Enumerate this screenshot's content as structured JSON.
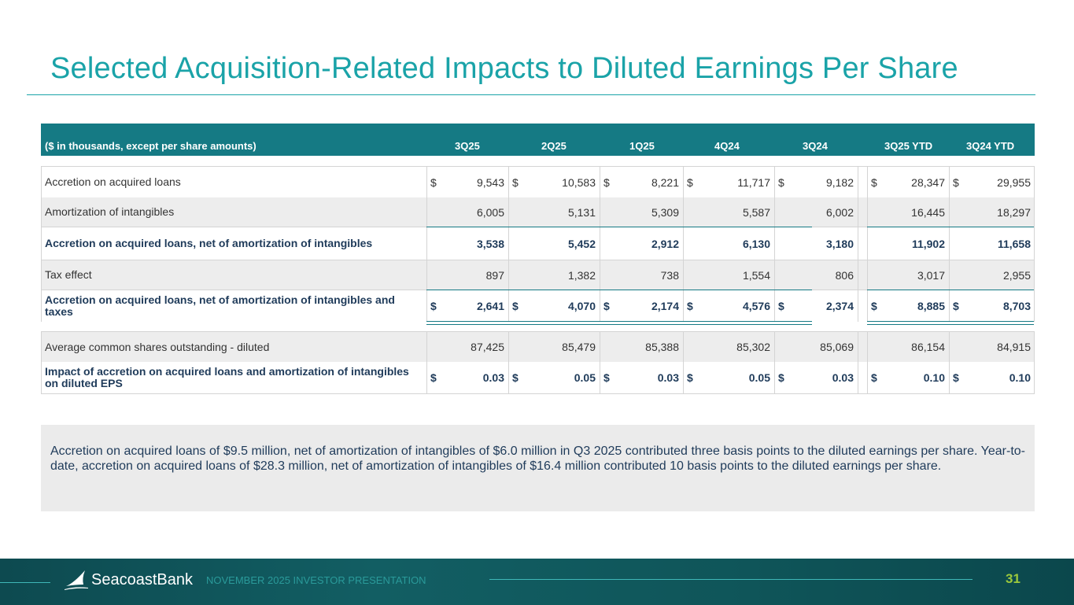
{
  "title": "Selected Acquisition-Related Impacts to Diluted Earnings Per Share",
  "table": {
    "header_label": "($ in thousands, except per share amounts)",
    "columns": [
      "3Q25",
      "2Q25",
      "1Q25",
      "4Q24",
      "3Q24",
      "3Q25 YTD",
      "3Q24 YTD"
    ],
    "currency_symbol": "$",
    "rows": [
      {
        "label": "Accretion on acquired loans",
        "values": [
          "9,543",
          "10,583",
          "8,221",
          "11,717",
          "9,182",
          "28,347",
          "29,955"
        ]
      },
      {
        "label": "Amortization of intangibles",
        "values": [
          "6,005",
          "5,131",
          "5,309",
          "5,587",
          "6,002",
          "16,445",
          "18,297"
        ]
      },
      {
        "label": "Accretion on acquired loans, net of amortization of intangibles",
        "values": [
          "3,538",
          "5,452",
          "2,912",
          "6,130",
          "3,180",
          "11,902",
          "11,658"
        ]
      },
      {
        "label": "Tax effect",
        "values": [
          "897",
          "1,382",
          "738",
          "1,554",
          "806",
          "3,017",
          "2,955"
        ]
      },
      {
        "label": "Accretion on acquired loans, net of amortization of intangibles and taxes",
        "values": [
          "2,641",
          "4,070",
          "2,174",
          "4,576",
          "2,374",
          "8,885",
          "8,703"
        ]
      },
      {
        "label": "Average common shares outstanding - diluted",
        "values": [
          "87,425",
          "85,479",
          "85,388",
          "85,302",
          "85,069",
          "86,154",
          "84,915"
        ]
      },
      {
        "label": "Impact of accretion on acquired loans and amortization of intangibles on diluted EPS",
        "values": [
          "0.03",
          "0.05",
          "0.03",
          "0.05",
          "0.03",
          "0.10",
          "0.10"
        ]
      }
    ]
  },
  "note": "Accretion on acquired loans of $9.5 million, net of amortization of intangibles of $6.0 million in Q3 2025 contributed three basis points to the diluted earnings per share. Year-to-date, accretion on acquired loans of $28.3 million, net of amortization of intangibles of $16.4 million contributed 10 basis points to the diluted earnings per share.",
  "footer": {
    "brand": "SeacoastBank",
    "presentation": "NOVEMBER 2025 INVESTOR PRESENTATION",
    "page_number": "31"
  },
  "colors": {
    "accent": "#1aa3a8",
    "header_bg": "#157a84",
    "page_number": "#9cc83c"
  }
}
